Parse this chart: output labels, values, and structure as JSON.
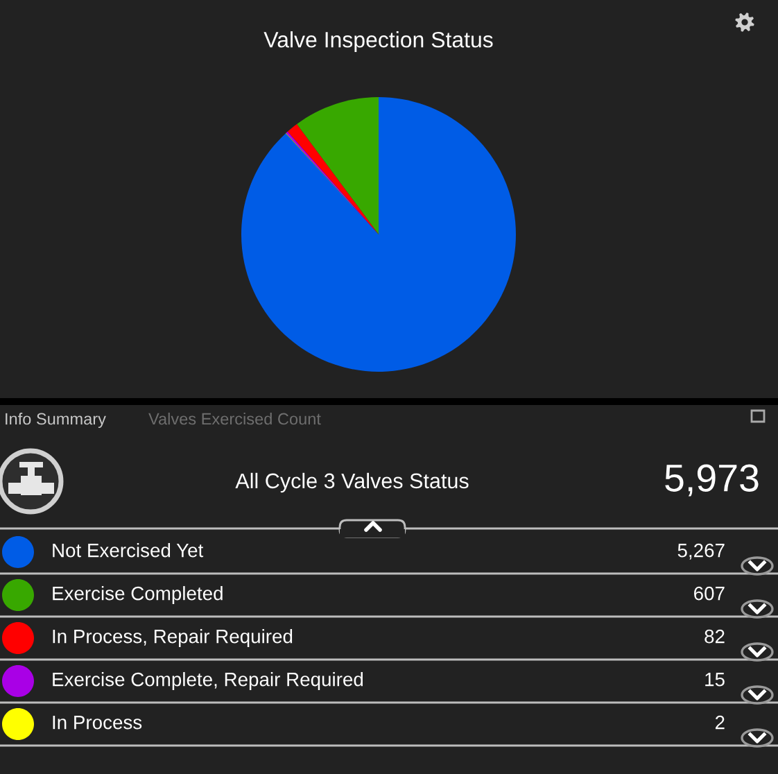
{
  "chart_data": {
    "type": "pie",
    "title": "Valve Inspection Status",
    "categories": [
      "Not Exercised Yet",
      "Exercise Completed",
      "In Process, Repair Required",
      "Exercise Complete, Repair Required",
      "In Process"
    ],
    "values": [
      5267,
      607,
      82,
      15,
      2
    ],
    "value_labels": [
      "5,267",
      "607",
      "82",
      "15",
      "2"
    ],
    "colors": [
      "#005ce6",
      "#38a800",
      "#ff0000",
      "#a900e6",
      "#ffff00"
    ],
    "legend": "bottom",
    "annotations": [
      "Info Summary",
      "Valves Exercised Count",
      "All Cycle 3 Valves Status",
      "5,973"
    ]
  }
}
